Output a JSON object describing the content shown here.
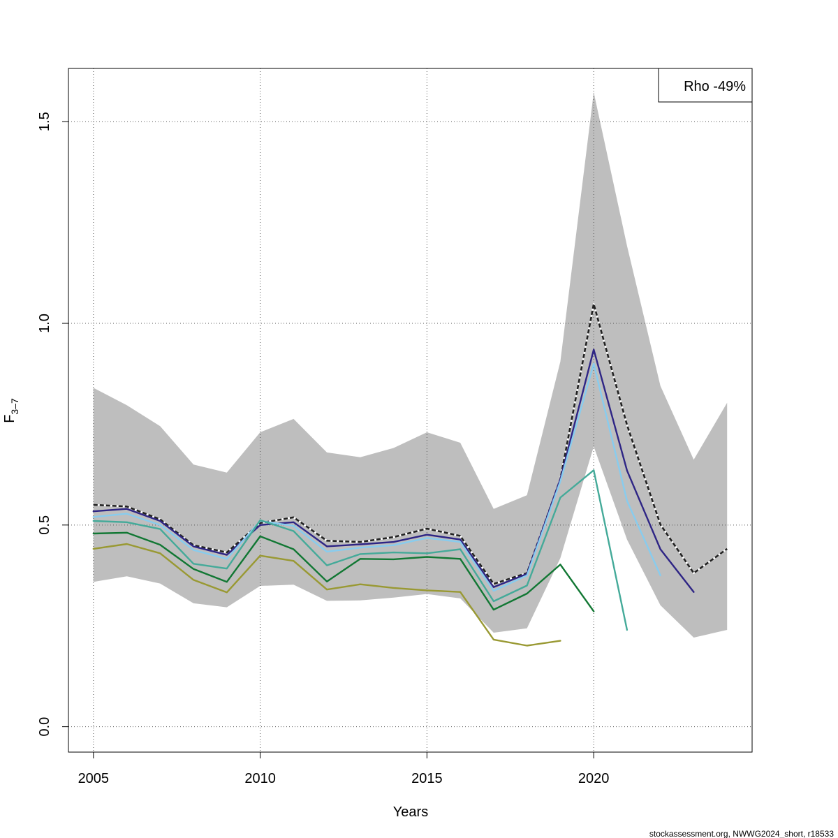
{
  "chart_data": {
    "type": "line",
    "title": "",
    "xlabel": "Years",
    "ylabel_base": "F",
    "ylabel_sub": "3–7",
    "xlim": [
      2004.25,
      2024.75
    ],
    "ylim": [
      -0.063,
      1.632
    ],
    "xticks": [
      2005,
      2010,
      2015,
      2020
    ],
    "yticks": [
      0.0,
      0.5,
      1.0,
      1.5
    ],
    "ytick_labels": [
      "0.0",
      "0.5",
      "1.0",
      "1.5"
    ],
    "grid": true,
    "legend": {
      "text": "Rho -49%",
      "placement": "top-right"
    },
    "credit": "stockassessment.org, NWWG2024_short, r18533",
    "band": {
      "x": [
        2005,
        2006,
        2007,
        2008,
        2009,
        2010,
        2011,
        2012,
        2013,
        2014,
        2015,
        2016,
        2017,
        2018,
        2019,
        2020,
        2021,
        2022,
        2023,
        2024
      ],
      "upper": [
        0.84,
        0.797,
        0.745,
        0.65,
        0.63,
        0.73,
        0.763,
        0.68,
        0.668,
        0.691,
        0.73,
        0.704,
        0.54,
        0.574,
        0.905,
        1.573,
        1.192,
        0.845,
        0.662,
        0.803
      ],
      "lower": [
        0.359,
        0.373,
        0.355,
        0.306,
        0.296,
        0.349,
        0.352,
        0.312,
        0.313,
        0.32,
        0.329,
        0.318,
        0.233,
        0.244,
        0.418,
        0.695,
        0.464,
        0.301,
        0.221,
        0.24
      ],
      "color": "#bebebe"
    },
    "series": [
      {
        "color": "#222222",
        "dash": true,
        "width": 2.6,
        "x": [
          2005,
          2006,
          2007,
          2008,
          2009,
          2010,
          2011,
          2012,
          2013,
          2014,
          2015,
          2016,
          2017,
          2018,
          2019,
          2020,
          2021,
          2022,
          2023,
          2024
        ],
        "values": [
          0.55,
          0.546,
          0.514,
          0.45,
          0.432,
          0.505,
          0.519,
          0.461,
          0.458,
          0.47,
          0.491,
          0.473,
          0.354,
          0.381,
          0.614,
          1.048,
          0.748,
          0.501,
          0.381,
          0.441
        ]
      },
      {
        "color": "#2e2585",
        "dash": false,
        "width": 2.4,
        "x": [
          2005,
          2006,
          2007,
          2008,
          2009,
          2010,
          2011,
          2012,
          2013,
          2014,
          2015,
          2016,
          2017,
          2018,
          2019,
          2020,
          2021,
          2022,
          2023
        ],
        "values": [
          0.534,
          0.54,
          0.51,
          0.447,
          0.426,
          0.5,
          0.507,
          0.447,
          0.452,
          0.458,
          0.476,
          0.464,
          0.346,
          0.379,
          0.614,
          0.935,
          0.635,
          0.44,
          0.334
        ]
      },
      {
        "color": "#88ccee",
        "dash": false,
        "width": 2.4,
        "x": [
          2005,
          2006,
          2007,
          2008,
          2009,
          2010,
          2011,
          2012,
          2013,
          2014,
          2015,
          2016,
          2017,
          2018,
          2019,
          2020,
          2021,
          2022
        ],
        "values": [
          0.52,
          0.528,
          0.5,
          0.438,
          0.416,
          0.51,
          0.498,
          0.434,
          0.444,
          0.45,
          0.468,
          0.458,
          0.337,
          0.375,
          0.608,
          0.9,
          0.56,
          0.375
        ]
      },
      {
        "color": "#44aa99",
        "dash": false,
        "width": 2.4,
        "x": [
          2005,
          2006,
          2007,
          2008,
          2009,
          2010,
          2011,
          2012,
          2013,
          2014,
          2015,
          2016,
          2017,
          2018,
          2019,
          2020,
          2021
        ],
        "values": [
          0.51,
          0.507,
          0.49,
          0.404,
          0.392,
          0.512,
          0.485,
          0.4,
          0.428,
          0.432,
          0.43,
          0.44,
          0.311,
          0.35,
          0.568,
          0.636,
          0.24
        ]
      },
      {
        "color": "#117733",
        "dash": false,
        "width": 2.4,
        "x": [
          2005,
          2006,
          2007,
          2008,
          2009,
          2010,
          2011,
          2012,
          2013,
          2014,
          2015,
          2016,
          2017,
          2018,
          2019,
          2020
        ],
        "values": [
          0.479,
          0.481,
          0.451,
          0.391,
          0.359,
          0.472,
          0.44,
          0.36,
          0.416,
          0.415,
          0.421,
          0.416,
          0.29,
          0.33,
          0.402,
          0.286
        ]
      },
      {
        "color": "#999933",
        "dash": false,
        "width": 2.4,
        "x": [
          2005,
          2006,
          2007,
          2008,
          2009,
          2010,
          2011,
          2012,
          2013,
          2014,
          2015,
          2016,
          2017,
          2018,
          2019
        ],
        "values": [
          0.441,
          0.453,
          0.43,
          0.364,
          0.333,
          0.424,
          0.411,
          0.34,
          0.353,
          0.344,
          0.338,
          0.334,
          0.216,
          0.201,
          0.213
        ]
      }
    ]
  }
}
